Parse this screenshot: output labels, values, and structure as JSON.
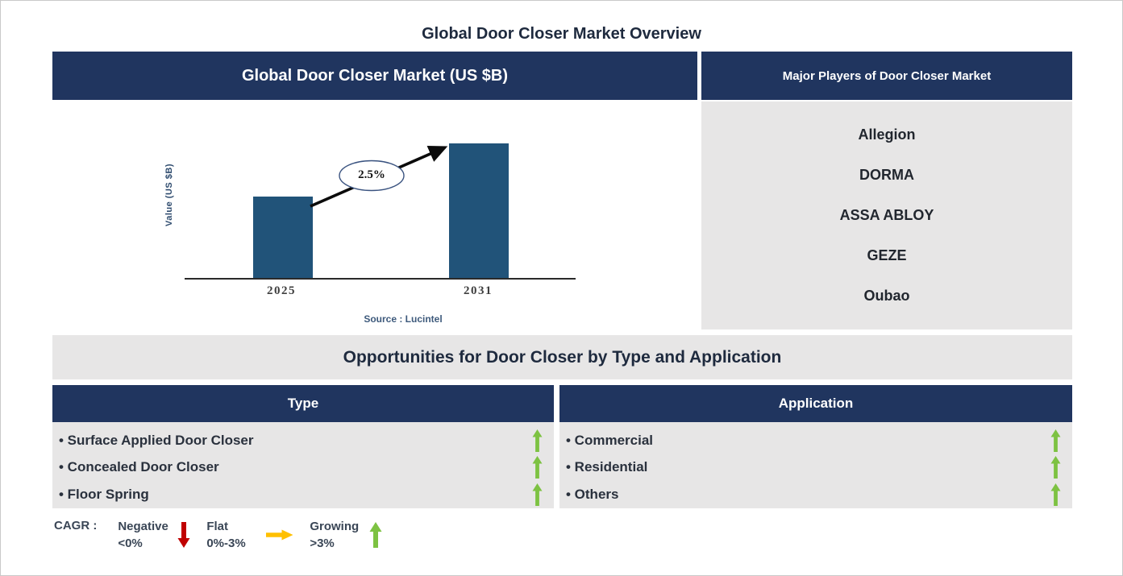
{
  "page": {
    "title": "Global Door Closer Market Overview"
  },
  "chart_panel": {
    "header": "Global Door Closer Market (US $B)",
    "chart_data": {
      "type": "bar",
      "categories": [
        "2025",
        "2031"
      ],
      "values": [
        0.61,
        1.0
      ],
      "values_are_relative_heights": true,
      "ylabel": "Value (US $B)",
      "xlabel": "",
      "annotation": {
        "cagr": "2.5%"
      },
      "source": "Source : Lucintel",
      "bar_color": "#215379",
      "axis_numbers_shown": false,
      "grid": false
    }
  },
  "players_panel": {
    "header": "Major Players of Door Closer Market",
    "players": [
      "Allegion",
      "DORMA",
      "ASSA ABLOY",
      "GEZE",
      "Oubao"
    ]
  },
  "opportunities": {
    "title": "Opportunities for Door Closer by Type and Application",
    "bullet": "•",
    "type_panel": {
      "header": "Type",
      "items": [
        {
          "label": "Surface Applied Door Closer",
          "trend": "up"
        },
        {
          "label": "Concealed Door Closer",
          "trend": "up"
        },
        {
          "label": "Floor Spring",
          "trend": "up"
        }
      ]
    },
    "application_panel": {
      "header": "Application",
      "items": [
        {
          "label": "Commercial",
          "trend": "up"
        },
        {
          "label": "Residential",
          "trend": "up"
        },
        {
          "label": "Others",
          "trend": "up"
        }
      ]
    }
  },
  "legend": {
    "label": "CAGR :",
    "entries": [
      {
        "name": "Negative",
        "range": "<0%",
        "arrow": "down",
        "color": "#C00000"
      },
      {
        "name": "Flat",
        "range": "0%-3%",
        "arrow": "right",
        "color": "#FFC000"
      },
      {
        "name": "Growing",
        "range": ">3%",
        "arrow": "up",
        "color": "#7DC242"
      }
    ]
  },
  "colors": {
    "navy": "#20355F",
    "bar_blue": "#215379",
    "panel_gray": "#E7E6E6",
    "growing_green": "#7DC242",
    "negative_red": "#C00000",
    "flat_yellow": "#FFC000",
    "title_text": "#1E2A3E"
  }
}
